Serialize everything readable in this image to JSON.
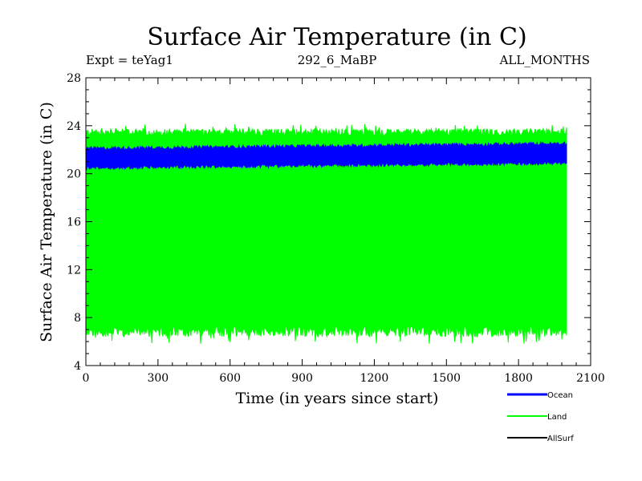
{
  "chart_data": {
    "type": "line",
    "title": "Surface Air Temperature (in C)",
    "annotations": {
      "left": "Expt = teYag1",
      "center": "292_6_MaBP",
      "right": "ALL_MONTHS"
    },
    "xlabel": "Time (in years since start)",
    "ylabel": "Surface Air Temperature (in C)",
    "xlim": [
      0,
      2100
    ],
    "ylim": [
      4,
      28
    ],
    "x_ticks": [
      0,
      300,
      600,
      900,
      1200,
      1500,
      1800,
      2100
    ],
    "y_ticks": [
      4,
      8,
      12,
      16,
      20,
      24,
      28
    ],
    "x_range": [
      0,
      2000
    ],
    "series": [
      {
        "name": "Land",
        "color": "#00ff00",
        "approx_min": 6.5,
        "approx_max": 23.5,
        "extreme_low": 5.8,
        "extreme_high": 24.2,
        "display": "filled seasonal band"
      },
      {
        "name": "Ocean",
        "color": "#0000ff",
        "approx_min": 20.7,
        "approx_max": 22.3,
        "trend": "slight increase from ~21.3 to ~21.7",
        "display": "narrow band"
      },
      {
        "name": "AllSurf",
        "color": "#000000",
        "display": "not visible (hidden under Ocean)"
      }
    ],
    "legend": [
      "Ocean",
      "Land",
      "AllSurf"
    ]
  }
}
